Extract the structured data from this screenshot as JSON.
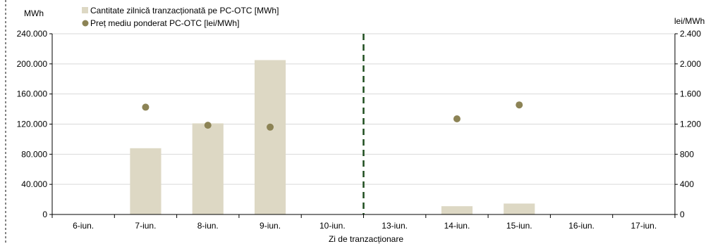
{
  "chart_data": {
    "type": "bar",
    "categories": [
      "6-iun.",
      "7-iun.",
      "8-iun.",
      "9-iun.",
      "10-iun.",
      "13-iun.",
      "14-iun.",
      "15-iun.",
      "16-iun.",
      "17-iun."
    ],
    "xlabel": "Zi de tranzacționare",
    "y_left": {
      "unit": "MWh",
      "ylim": [
        0,
        240000
      ],
      "ticks": [
        0,
        40000,
        80000,
        120000,
        160000,
        200000,
        240000
      ],
      "tick_labels": [
        "0",
        "40.000",
        "80.000",
        "120.000",
        "160.000",
        "200.000",
        "240.000"
      ]
    },
    "y_right": {
      "unit": "lei/MWh",
      "ylim": [
        0,
        2400
      ],
      "ticks": [
        0,
        400,
        800,
        1200,
        1600,
        2000,
        2400
      ],
      "tick_labels": [
        "0",
        "400",
        "800",
        "1.200",
        "1.600",
        "2.000",
        "2.400"
      ]
    },
    "series": [
      {
        "name": "Cantitate zilnică tranzacționată pe PC-OTC [MWh]",
        "type": "bar",
        "axis": "left",
        "color": "#ddd8c4",
        "values": [
          0,
          88000,
          121000,
          205000,
          0,
          0,
          11000,
          14500,
          0,
          0
        ]
      },
      {
        "name": "Preț mediu ponderat PC-OTC [lei/MWh]",
        "type": "scatter",
        "axis": "right",
        "color": "#8c8355",
        "values": [
          null,
          1425,
          1185,
          1160,
          null,
          null,
          1270,
          1455,
          null,
          null
        ]
      }
    ],
    "separator": {
      "after_category": "10-iun.",
      "style": "dashed",
      "color": "#1e4d1e"
    },
    "grid": "horizontal",
    "legend_position": "top-left"
  }
}
